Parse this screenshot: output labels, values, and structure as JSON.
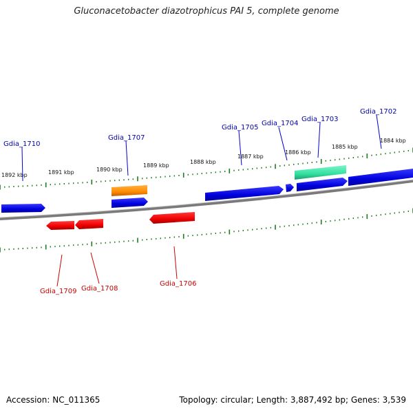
{
  "title": "Gluconacetobacter diazotrophicus PAI 5, complete genome",
  "footer": {
    "accession": "Accession: NC_011365",
    "topology": "Topology: circular; Length: 3,887,492 bp; Genes: 3,539"
  },
  "colors": {
    "backbone": "#8a8a8a",
    "tick": "#1f7a1f",
    "forward_gene": "#0000dd",
    "reverse_gene": "#ee0000",
    "orange_gene": "#ff8c00",
    "teal_gene": "#33e0a0",
    "forward_label": "#0000aa",
    "reverse_label": "#cc0000"
  },
  "ticks": [
    {
      "label": "1892 kbp"
    },
    {
      "label": "1891 kbp"
    },
    {
      "label": "1890 kbp"
    },
    {
      "label": "1889 kbp"
    },
    {
      "label": "1888 kbp"
    },
    {
      "label": "1887 kbp"
    },
    {
      "label": "1886 kbp"
    },
    {
      "label": "1885 kbp"
    },
    {
      "label": "1884 kbp"
    }
  ],
  "genes": [
    {
      "name": "Gdia_1710",
      "strand": "forward"
    },
    {
      "name": "Gdia_1707",
      "strand": "forward"
    },
    {
      "name": "Gdia_1705",
      "strand": "forward"
    },
    {
      "name": "Gdia_1704",
      "strand": "forward"
    },
    {
      "name": "Gdia_1703",
      "strand": "forward"
    },
    {
      "name": "Gdia_1702",
      "strand": "forward"
    },
    {
      "name": "Gdia_1709",
      "strand": "reverse"
    },
    {
      "name": "Gdia_1708",
      "strand": "reverse"
    },
    {
      "name": "Gdia_1706",
      "strand": "reverse"
    }
  ]
}
